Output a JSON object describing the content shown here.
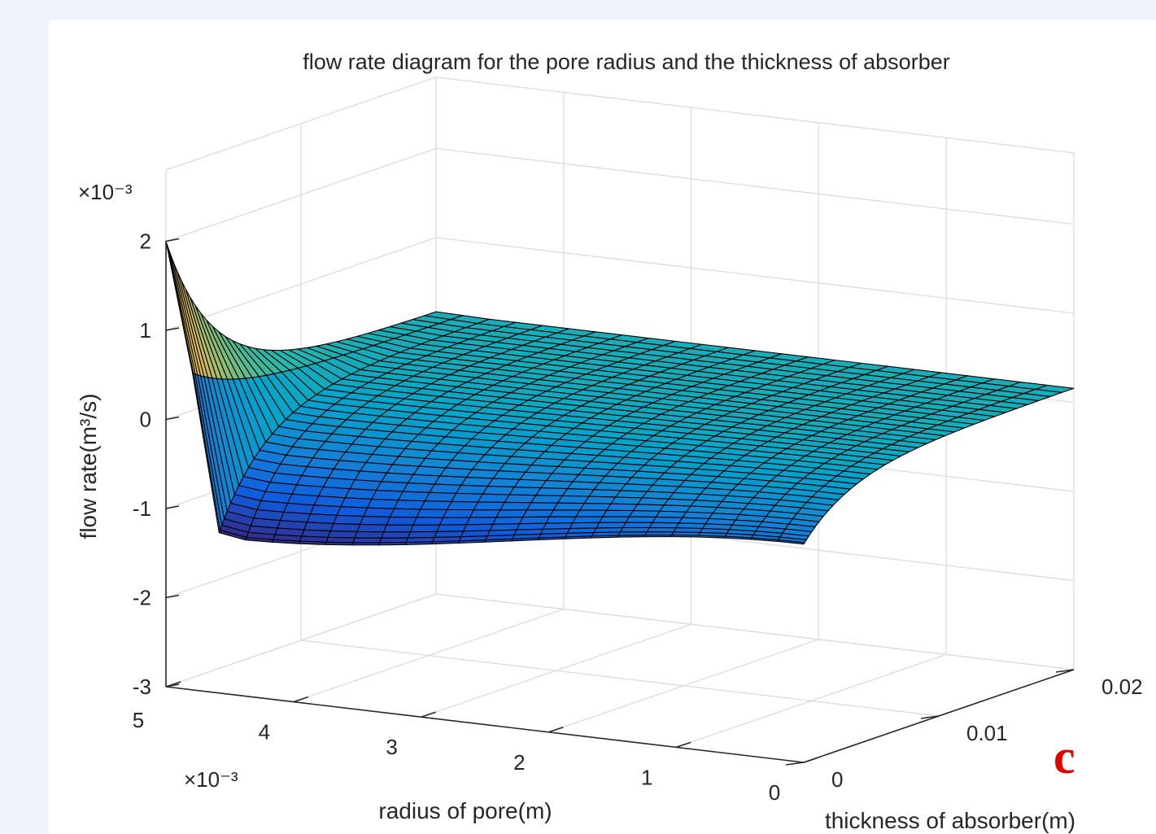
{
  "chart_data": {
    "type": "surface",
    "title": "flow rate diagram for the pore radius and the thickness of absorber",
    "xlabel": "radius of pore(m)",
    "ylabel": "thickness of absorber(m)",
    "zlabel": "flow rate(m³/s)",
    "x_scale_label": "×10⁻³",
    "z_scale_label": "×10⁻³",
    "x_range": [
      0,
      5
    ],
    "y_range": [
      0,
      0.02
    ],
    "z_range": [
      -3,
      2
    ],
    "x_ticks": [
      "5",
      "4",
      "3",
      "2",
      "1",
      "0"
    ],
    "y_ticks": [
      "0",
      "0.01",
      "0.02"
    ],
    "z_ticks": [
      "2",
      "1",
      "0",
      "-1",
      "-2",
      "-3"
    ],
    "grid": true,
    "colormap": "parula",
    "colormap_stops": [
      "#352a87",
      "#0f5cdd",
      "#1481d6",
      "#06a4ca",
      "#2eb7a4",
      "#87bf77",
      "#d1bb59",
      "#fec832",
      "#f9fb0e"
    ],
    "edge_color": "#000000",
    "corner_values": [
      {
        "radius_e3": 5,
        "thickness": 0,
        "flow_rate_e3": 2.0
      },
      {
        "radius_e3": 5,
        "thickness": 0.02,
        "flow_rate_e3": 0.16
      },
      {
        "radius_e3": 0,
        "thickness": 0,
        "flow_rate_e3": -0.55
      },
      {
        "radius_e3": 0,
        "thickness": 0.02,
        "flow_rate_e3": 0.16
      }
    ],
    "minimum": {
      "radius_e3": 4.55,
      "thickness": 0.0035,
      "flow_rate_e3": -1.25
    }
  },
  "panel_label": "c"
}
